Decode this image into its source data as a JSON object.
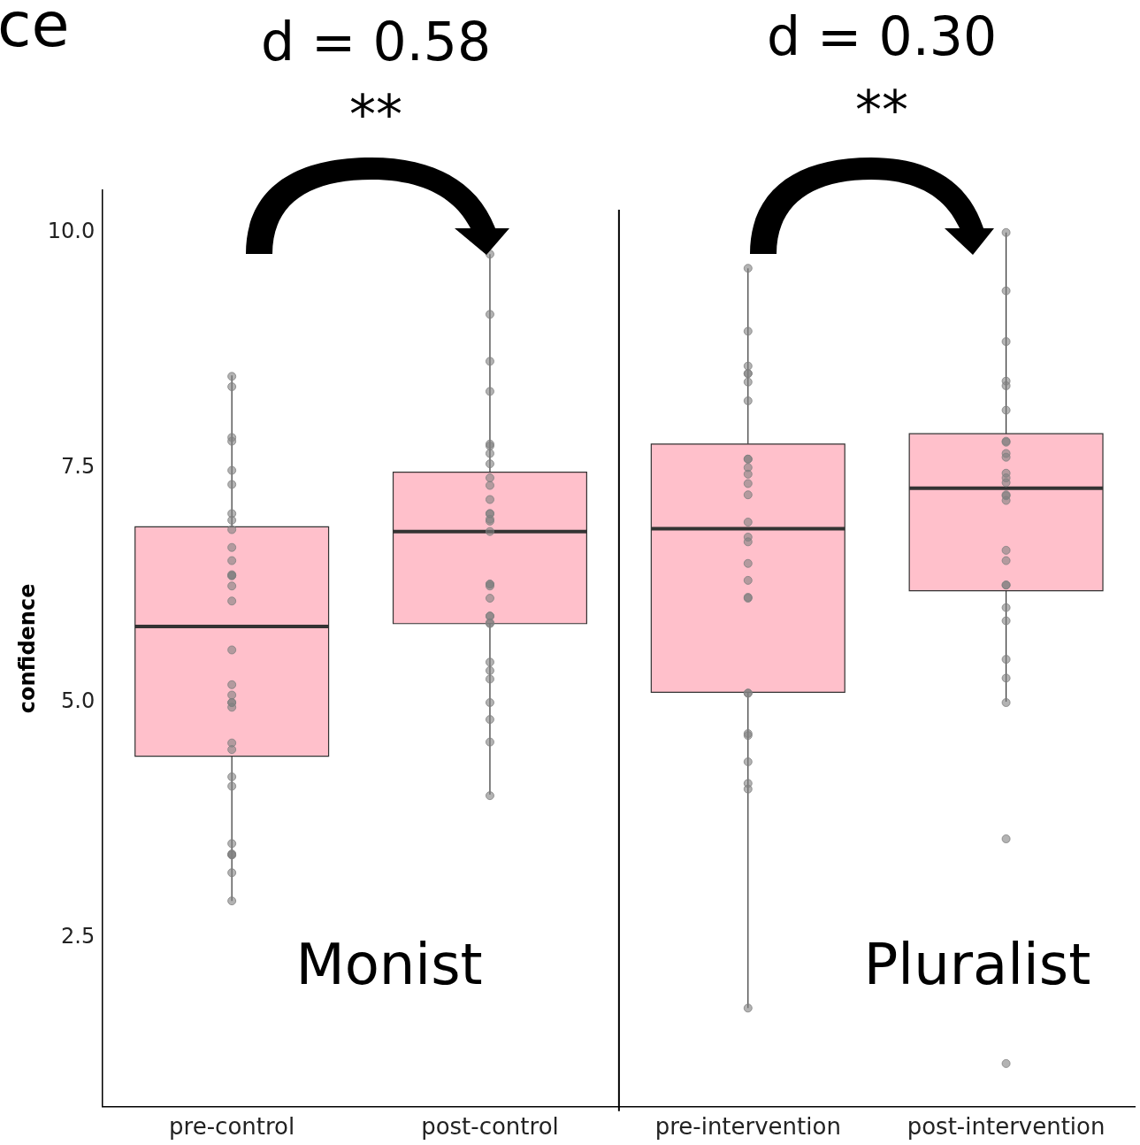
{
  "chart_data": {
    "type": "box",
    "ylabel": "confidence",
    "categories": [
      "pre-control",
      "post-control",
      "pre-intervention",
      "post-intervention"
    ],
    "ylim": [
      0.7,
      10.45
    ],
    "yticks": [
      {
        "value": 2.5,
        "label": "2.5"
      },
      {
        "value": 5,
        "label": "5.0"
      },
      {
        "value": 7.5,
        "label": "7.5"
      },
      {
        "value": 10,
        "label": "10.0"
      }
    ],
    "grid": false,
    "legend": false,
    "series": [
      {
        "color": "#ffc0cb",
        "boxes": [
          {
            "low": 2.89,
            "q1": 4.43,
            "median": 5.81,
            "q3": 6.87,
            "high": 8.48
          },
          {
            "low": 4.02,
            "q1": 5.84,
            "median": 6.82,
            "q3": 7.45,
            "high": 9.77
          },
          {
            "low": 1.75,
            "q1": 5.11,
            "median": 6.85,
            "q3": 7.75,
            "high": 9.62
          },
          {
            "low": 5.01,
            "q1": 6.19,
            "median": 7.28,
            "q3": 7.86,
            "high": 10.0
          }
        ]
      },
      {
        "type": "scatter",
        "color": "#808080",
        "marker": "circle",
        "x": [
          "pre-control",
          "pre-control",
          "pre-control",
          "pre-control",
          "pre-control",
          "pre-control",
          "pre-control",
          "pre-control",
          "pre-control",
          "pre-control",
          "pre-control",
          "pre-control",
          "pre-control",
          "pre-control",
          "pre-control",
          "pre-control",
          "pre-control",
          "pre-control",
          "pre-control",
          "pre-control",
          "pre-control",
          "pre-control",
          "pre-control",
          "pre-control",
          "pre-control",
          "pre-control",
          "pre-control",
          "pre-control",
          "pre-control",
          "pre-control",
          "pre-control",
          "pre-control",
          "post-control",
          "post-control",
          "post-control",
          "post-control",
          "post-control",
          "post-control",
          "post-control",
          "post-control",
          "post-control",
          "post-control",
          "post-control",
          "post-control",
          "post-control",
          "post-control",
          "post-control",
          "post-control",
          "post-control",
          "post-control",
          "post-control",
          "post-control",
          "post-control",
          "post-control",
          "post-control",
          "post-control",
          "post-control",
          "post-control",
          "post-control",
          "post-control",
          "post-control",
          "post-control",
          "post-control",
          "pre-intervention",
          "pre-intervention",
          "pre-intervention",
          "pre-intervention",
          "pre-intervention",
          "pre-intervention",
          "pre-intervention",
          "pre-intervention",
          "pre-intervention",
          "pre-intervention",
          "pre-intervention",
          "pre-intervention",
          "pre-intervention",
          "pre-intervention",
          "pre-intervention",
          "pre-intervention",
          "pre-intervention",
          "pre-intervention",
          "pre-intervention",
          "pre-intervention",
          "pre-intervention",
          "pre-intervention",
          "pre-intervention",
          "pre-intervention",
          "pre-intervention",
          "pre-intervention",
          "pre-intervention",
          "pre-intervention",
          "post-intervention",
          "post-intervention",
          "post-intervention",
          "post-intervention",
          "post-intervention",
          "post-intervention",
          "post-intervention",
          "post-intervention",
          "post-intervention",
          "post-intervention",
          "post-intervention",
          "post-intervention",
          "post-intervention",
          "post-intervention",
          "post-intervention",
          "post-intervention",
          "post-intervention",
          "post-intervention",
          "post-intervention",
          "post-intervention",
          "post-intervention",
          "post-intervention",
          "post-intervention",
          "post-intervention",
          "post-intervention",
          "post-intervention",
          "post-intervention"
        ],
        "values": [
          8.36,
          8.47,
          7.82,
          7.78,
          7.47,
          7.32,
          7.01,
          6.94,
          6.84,
          6.65,
          6.51,
          6.35,
          6.36,
          6.35,
          6.24,
          6.08,
          5.56,
          5.19,
          5.08,
          5.0,
          5.0,
          4.95,
          4.57,
          4.5,
          4.21,
          4.11,
          3.5,
          3.38,
          3.39,
          3.38,
          3.19,
          2.89,
          9.77,
          9.13,
          8.63,
          8.31,
          7.73,
          7.75,
          7.65,
          7.54,
          7.39,
          7.31,
          7.16,
          7.01,
          7.01,
          6.95,
          6.93,
          6.82,
          6.26,
          6.26,
          6.24,
          6.11,
          5.92,
          5.92,
          5.85,
          5.84,
          5.43,
          5.34,
          5.25,
          5.0,
          4.82,
          4.58,
          4.01,
          9.62,
          8.95,
          8.58,
          8.5,
          8.5,
          8.41,
          8.21,
          7.59,
          7.59,
          7.5,
          7.43,
          7.33,
          7.21,
          6.92,
          6.76,
          6.71,
          6.48,
          6.3,
          6.12,
          6.11,
          5.1,
          5.1,
          4.67,
          4.65,
          4.37,
          4.14,
          4.08,
          1.75,
          10.0,
          9.38,
          8.84,
          8.42,
          8.37,
          8.11,
          7.78,
          7.77,
          7.65,
          7.61,
          7.44,
          7.39,
          7.34,
          7.21,
          7.2,
          7.15,
          6.62,
          6.51,
          6.25,
          6.25,
          6.01,
          5.87,
          5.46,
          5.26,
          5.0,
          3.55,
          1.16
        ]
      }
    ],
    "annotations": [
      "ce",
      "d = 0.58",
      "**",
      "d = 0.30",
      "**",
      "Monist",
      "Pluralist"
    ]
  }
}
